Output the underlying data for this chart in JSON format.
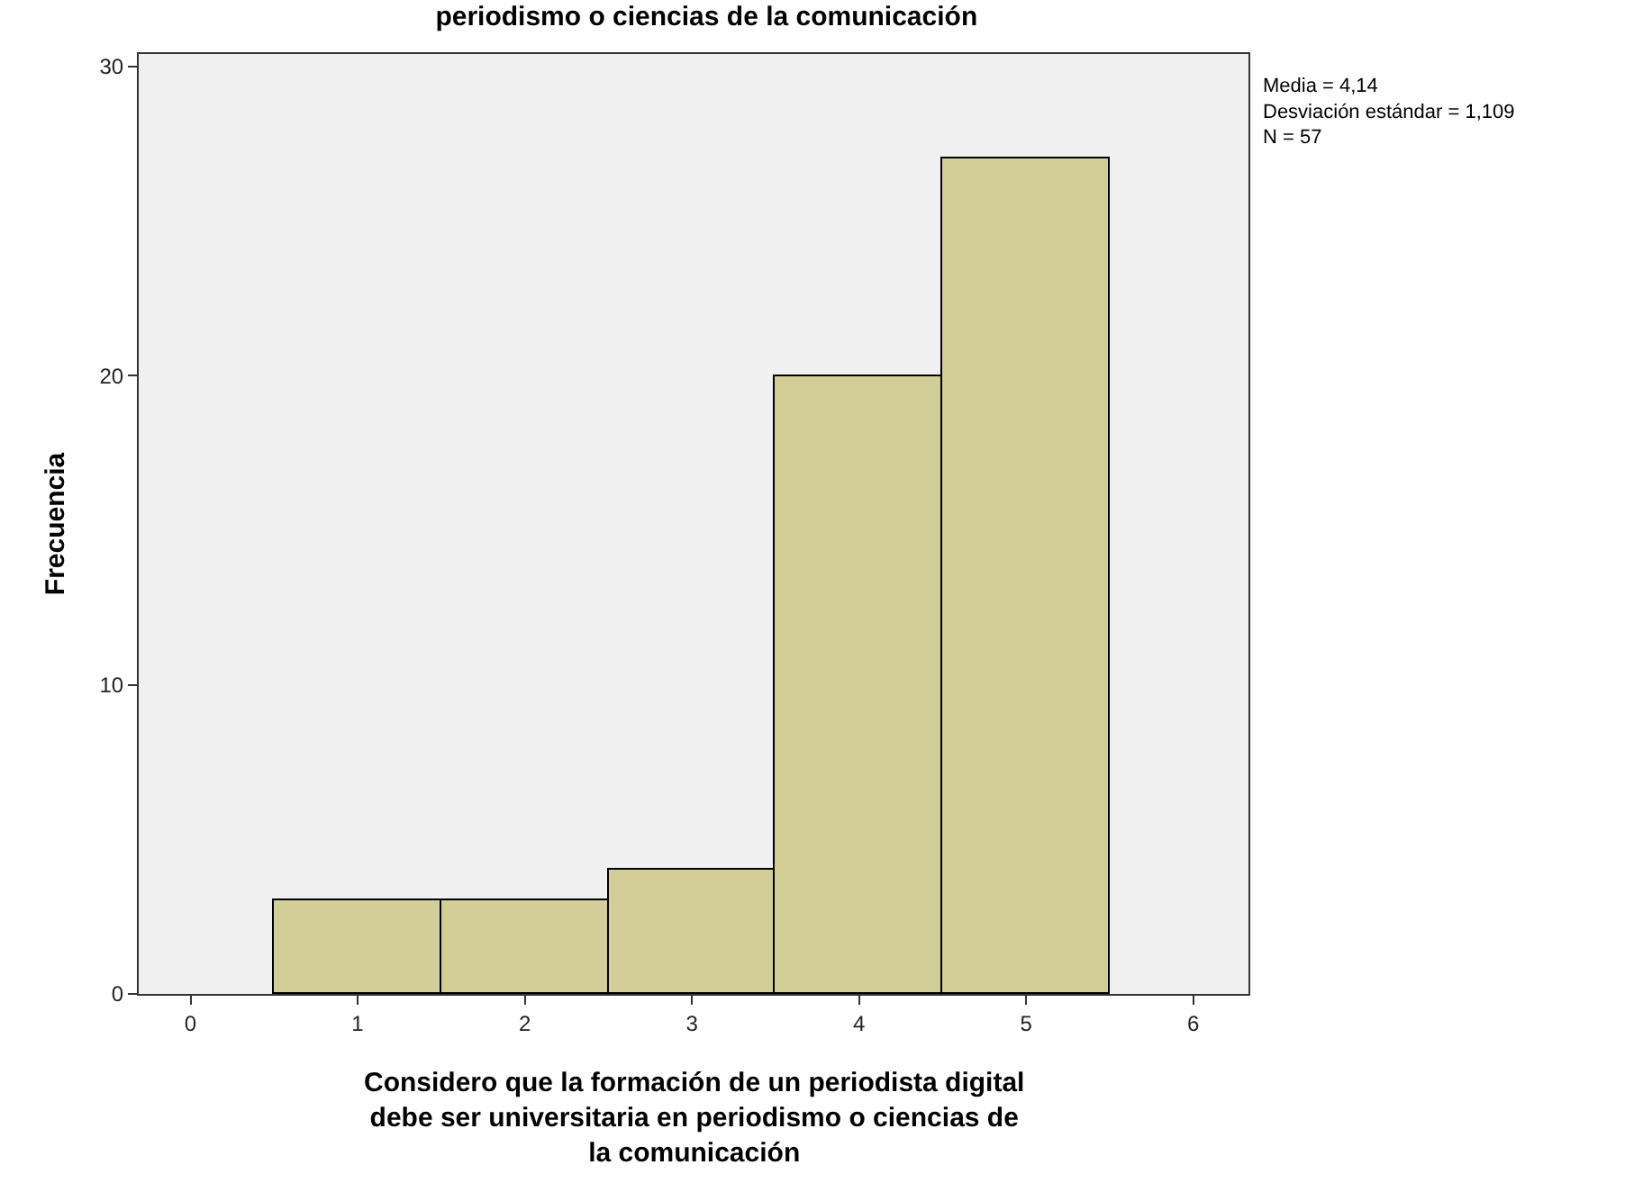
{
  "chart_data": {
    "type": "histogram",
    "title": "periodismo o ciencias de la comunicación",
    "xlabel": "Considero que la formación de un periodista digital debe ser universitaria en periodismo o ciencias de la comunicación",
    "ylabel": "Frecuencia",
    "bins": [
      0.5,
      1.5,
      2.5,
      3.5,
      4.5,
      5.5
    ],
    "values": [
      3,
      3,
      4,
      20,
      27
    ],
    "color": "#d3ce97",
    "xlim": [
      -0.31,
      6.33
    ],
    "xticks": [
      0,
      1,
      2,
      3,
      4,
      5,
      6
    ],
    "ylim": [
      0,
      30.4
    ],
    "yticks": [
      0,
      10,
      20,
      30
    ],
    "grid": false,
    "annotations": [
      "Media = 4,14",
      "Desviación estándar = 1,109",
      "N = 57"
    ]
  }
}
